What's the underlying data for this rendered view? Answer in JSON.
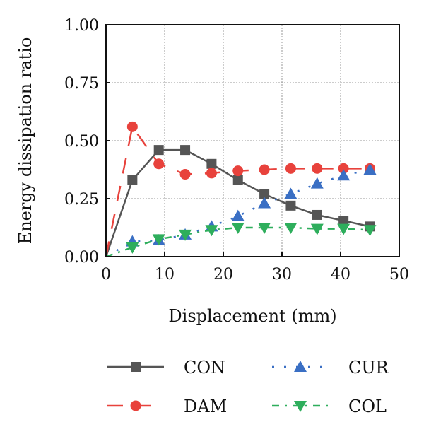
{
  "chart_data": {
    "type": "line",
    "xlabel": "Displacement (mm)",
    "ylabel": "Energy dissipation ratio",
    "xlim": [
      0,
      50
    ],
    "ylim": [
      0,
      1.0
    ],
    "xticks": [
      "0",
      "10",
      "20",
      "30",
      "40",
      "50"
    ],
    "yticks": [
      "0.00",
      "0.25",
      "0.50",
      "0.75",
      "1.00"
    ],
    "grid": true,
    "legend_position": "bottom",
    "series": [
      {
        "name": "CON",
        "color": "#555555",
        "marker": "square",
        "line_style": "solid",
        "x": [
          0,
          4.5,
          9,
          13.5,
          18,
          22.5,
          27,
          31.5,
          36,
          40.5,
          45
        ],
        "y": [
          0.0,
          0.33,
          0.46,
          0.46,
          0.4,
          0.33,
          0.27,
          0.22,
          0.18,
          0.155,
          0.13
        ]
      },
      {
        "name": "DAM",
        "color": "#e8423c",
        "marker": "circle",
        "line_style": "dashed",
        "x": [
          0,
          4.5,
          9,
          13.5,
          18,
          22.5,
          27,
          31.5,
          36,
          40.5,
          45
        ],
        "y": [
          0.0,
          0.56,
          0.4,
          0.355,
          0.36,
          0.37,
          0.375,
          0.38,
          0.38,
          0.38,
          0.38
        ]
      },
      {
        "name": "CUR",
        "color": "#3a6fc4",
        "marker": "triangle-up",
        "line_style": "dotted",
        "x": [
          0,
          4.5,
          9,
          13.5,
          18,
          22.5,
          27,
          31.5,
          36,
          40.5,
          45
        ],
        "y": [
          0.0,
          0.065,
          0.07,
          0.095,
          0.13,
          0.175,
          0.23,
          0.27,
          0.315,
          0.35,
          0.375
        ]
      },
      {
        "name": "COL",
        "color": "#2eae5c",
        "marker": "triangle-down",
        "line_style": "dashdot",
        "x": [
          0,
          4.5,
          9,
          13.5,
          18,
          22.5,
          27,
          31.5,
          36,
          40.5,
          45
        ],
        "y": [
          0.0,
          0.04,
          0.075,
          0.095,
          0.115,
          0.125,
          0.125,
          0.125,
          0.12,
          0.12,
          0.115
        ]
      }
    ]
  }
}
